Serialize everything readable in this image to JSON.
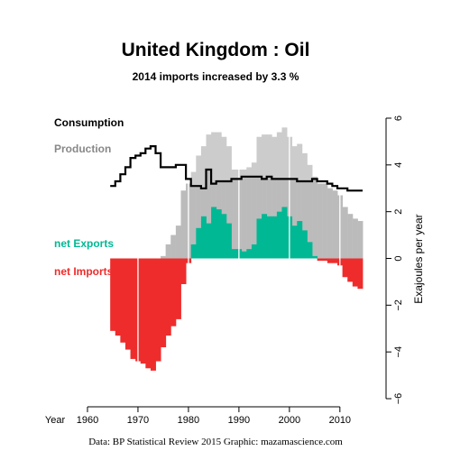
{
  "chart_data": {
    "type": "bar",
    "title": "United Kingdom :  Oil",
    "subtitle": "2014 imports increased by 3.3 %",
    "xlabel": "Year",
    "ylabel": "Exajoules per year",
    "xlim": [
      1955,
      2017
    ],
    "ylim": [
      -6,
      6
    ],
    "x_ticks": [
      1960,
      1970,
      1980,
      1990,
      2000,
      2010
    ],
    "y_ticks": [
      -6,
      -4,
      -2,
      0,
      2,
      4,
      6
    ],
    "years": [
      1965,
      1966,
      1967,
      1968,
      1969,
      1970,
      1971,
      1972,
      1973,
      1974,
      1975,
      1976,
      1977,
      1978,
      1979,
      1980,
      1981,
      1982,
      1983,
      1984,
      1985,
      1986,
      1987,
      1988,
      1989,
      1990,
      1991,
      1992,
      1993,
      1994,
      1995,
      1996,
      1997,
      1998,
      1999,
      2000,
      2001,
      2002,
      2003,
      2004,
      2005,
      2006,
      2007,
      2008,
      2009,
      2010,
      2011,
      2012,
      2013,
      2014
    ],
    "series": [
      {
        "name": "Consumption",
        "color": "#000000",
        "style": "step-line",
        "values": [
          3.1,
          3.3,
          3.6,
          3.9,
          4.3,
          4.4,
          4.5,
          4.7,
          4.8,
          4.5,
          3.9,
          3.9,
          3.9,
          4.0,
          4.0,
          3.4,
          3.1,
          3.1,
          3.0,
          3.8,
          3.2,
          3.3,
          3.3,
          3.3,
          3.4,
          3.4,
          3.5,
          3.5,
          3.5,
          3.5,
          3.4,
          3.5,
          3.4,
          3.4,
          3.4,
          3.4,
          3.4,
          3.3,
          3.3,
          3.3,
          3.4,
          3.3,
          3.3,
          3.2,
          3.1,
          3.0,
          3.0,
          2.9,
          2.9,
          2.9
        ]
      },
      {
        "name": "Production",
        "color": "#888888",
        "style": "bar",
        "values": [
          0.0,
          0.0,
          0.0,
          0.0,
          0.0,
          0.0,
          0.0,
          0.0,
          0.0,
          0.0,
          0.1,
          0.6,
          1.0,
          1.4,
          2.9,
          3.2,
          3.7,
          4.4,
          4.8,
          5.3,
          5.4,
          5.4,
          5.2,
          4.8,
          3.8,
          3.8,
          3.8,
          3.9,
          4.1,
          5.2,
          5.3,
          5.3,
          5.2,
          5.4,
          5.6,
          5.2,
          4.8,
          4.9,
          4.5,
          4.0,
          3.5,
          3.2,
          3.2,
          3.0,
          2.9,
          2.7,
          2.2,
          1.9,
          1.7,
          1.6
        ]
      },
      {
        "name": "net Exports",
        "color": "#00b894",
        "style": "bar",
        "values": [
          0,
          0,
          0,
          0,
          0,
          0,
          0,
          0,
          0,
          0,
          0,
          0,
          0,
          0,
          0,
          0,
          0.6,
          1.3,
          1.8,
          1.5,
          2.2,
          2.1,
          1.9,
          1.5,
          0.4,
          0.4,
          0.3,
          0.4,
          0.6,
          1.7,
          1.9,
          1.8,
          1.8,
          2.0,
          2.2,
          1.8,
          1.4,
          1.6,
          1.2,
          0.7,
          0.1,
          0,
          0,
          0,
          0,
          0,
          0,
          0,
          0,
          0
        ]
      },
      {
        "name": "net Imports",
        "color": "#ee2c2c",
        "style": "bar",
        "values": [
          -3.1,
          -3.3,
          -3.6,
          -3.9,
          -4.3,
          -4.4,
          -4.5,
          -4.7,
          -4.8,
          -4.4,
          -3.8,
          -3.3,
          -2.9,
          -2.6,
          -1.1,
          -0.2,
          0,
          0,
          0,
          0,
          0,
          0,
          0,
          0,
          0,
          0,
          0,
          0,
          0,
          0,
          0,
          0,
          0,
          0,
          0,
          0,
          0,
          0,
          0,
          0,
          0,
          -0.1,
          -0.1,
          -0.2,
          -0.2,
          -0.3,
          -0.8,
          -1.0,
          -1.2,
          -1.3
        ]
      }
    ]
  },
  "caption": "Data: BP Statistical Review 2015    Graphic: mazamascience.com"
}
